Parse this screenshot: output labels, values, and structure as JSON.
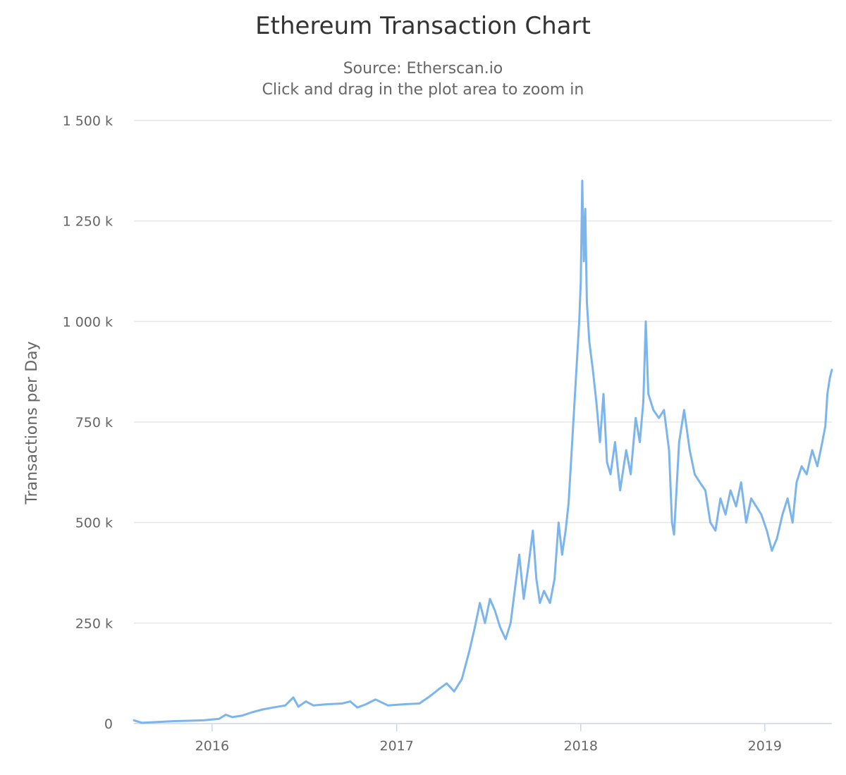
{
  "chart_data": {
    "type": "line",
    "title": "Ethereum Transaction Chart",
    "subtitle_lines": [
      "Source: Etherscan.io",
      "Click and drag in the plot area to zoom in"
    ],
    "ylabel": "Transactions per Day",
    "xlabel": "",
    "ylim": [
      0,
      1500000
    ],
    "xlim": [
      "2015-07-30",
      "2019-05-14"
    ],
    "y_ticks": [
      {
        "value": 0,
        "label": "0"
      },
      {
        "value": 250000,
        "label": "250 k"
      },
      {
        "value": 500000,
        "label": "500 k"
      },
      {
        "value": 750000,
        "label": "750 k"
      },
      {
        "value": 1000000,
        "label": "1 000 k"
      },
      {
        "value": 1250000,
        "label": "1 250 k"
      },
      {
        "value": 1500000,
        "label": "1 500 k"
      }
    ],
    "x_ticks": [
      {
        "value": "2016-01-01",
        "label": "2016"
      },
      {
        "value": "2017-01-01",
        "label": "2017"
      },
      {
        "value": "2018-01-01",
        "label": "2018"
      },
      {
        "value": "2019-01-01",
        "label": "2019"
      }
    ],
    "grid": true,
    "legend": "none",
    "series": [
      {
        "color": "#7cb5ec",
        "points": [
          [
            "2015-07-30",
            8000
          ],
          [
            "2015-08-15",
            2000
          ],
          [
            "2015-09-15",
            4000
          ],
          [
            "2015-10-15",
            6000
          ],
          [
            "2015-11-15",
            7000
          ],
          [
            "2015-12-15",
            8000
          ],
          [
            "2016-01-15",
            12000
          ],
          [
            "2016-01-28",
            22000
          ],
          [
            "2016-02-10",
            16000
          ],
          [
            "2016-03-01",
            20000
          ],
          [
            "2016-03-20",
            28000
          ],
          [
            "2016-04-10",
            35000
          ],
          [
            "2016-05-01",
            40000
          ],
          [
            "2016-05-25",
            45000
          ],
          [
            "2016-06-10",
            65000
          ],
          [
            "2016-06-20",
            42000
          ],
          [
            "2016-07-05",
            55000
          ],
          [
            "2016-07-20",
            45000
          ],
          [
            "2016-08-15",
            48000
          ],
          [
            "2016-09-15",
            50000
          ],
          [
            "2016-10-01",
            55000
          ],
          [
            "2016-10-15",
            40000
          ],
          [
            "2016-11-01",
            48000
          ],
          [
            "2016-11-20",
            60000
          ],
          [
            "2016-12-15",
            45000
          ],
          [
            "2017-01-15",
            48000
          ],
          [
            "2017-02-15",
            50000
          ],
          [
            "2017-03-10",
            70000
          ],
          [
            "2017-03-25",
            85000
          ],
          [
            "2017-04-10",
            100000
          ],
          [
            "2017-04-25",
            80000
          ],
          [
            "2017-05-10",
            110000
          ],
          [
            "2017-05-25",
            180000
          ],
          [
            "2017-06-05",
            240000
          ],
          [
            "2017-06-15",
            300000
          ],
          [
            "2017-06-25",
            250000
          ],
          [
            "2017-07-05",
            310000
          ],
          [
            "2017-07-15",
            280000
          ],
          [
            "2017-07-25",
            240000
          ],
          [
            "2017-08-05",
            210000
          ],
          [
            "2017-08-15",
            250000
          ],
          [
            "2017-08-25",
            350000
          ],
          [
            "2017-09-01",
            420000
          ],
          [
            "2017-09-10",
            310000
          ],
          [
            "2017-09-20",
            400000
          ],
          [
            "2017-09-28",
            480000
          ],
          [
            "2017-10-05",
            360000
          ],
          [
            "2017-10-12",
            300000
          ],
          [
            "2017-10-20",
            330000
          ],
          [
            "2017-11-01",
            300000
          ],
          [
            "2017-11-10",
            360000
          ],
          [
            "2017-11-18",
            500000
          ],
          [
            "2017-11-25",
            420000
          ],
          [
            "2017-12-02",
            480000
          ],
          [
            "2017-12-08",
            550000
          ],
          [
            "2017-12-15",
            700000
          ],
          [
            "2017-12-22",
            850000
          ],
          [
            "2017-12-29",
            1000000
          ],
          [
            "2018-01-01",
            1100000
          ],
          [
            "2018-01-04",
            1350000
          ],
          [
            "2018-01-07",
            1150000
          ],
          [
            "2018-01-10",
            1280000
          ],
          [
            "2018-01-13",
            1050000
          ],
          [
            "2018-01-18",
            950000
          ],
          [
            "2018-01-25",
            880000
          ],
          [
            "2018-02-01",
            800000
          ],
          [
            "2018-02-08",
            700000
          ],
          [
            "2018-02-15",
            820000
          ],
          [
            "2018-02-22",
            650000
          ],
          [
            "2018-03-01",
            620000
          ],
          [
            "2018-03-10",
            700000
          ],
          [
            "2018-03-20",
            580000
          ],
          [
            "2018-04-01",
            680000
          ],
          [
            "2018-04-10",
            620000
          ],
          [
            "2018-04-20",
            760000
          ],
          [
            "2018-04-28",
            700000
          ],
          [
            "2018-05-05",
            800000
          ],
          [
            "2018-05-10",
            1000000
          ],
          [
            "2018-05-15",
            820000
          ],
          [
            "2018-05-25",
            780000
          ],
          [
            "2018-06-05",
            760000
          ],
          [
            "2018-06-15",
            780000
          ],
          [
            "2018-06-25",
            680000
          ],
          [
            "2018-07-01",
            500000
          ],
          [
            "2018-07-05",
            470000
          ],
          [
            "2018-07-15",
            700000
          ],
          [
            "2018-07-25",
            780000
          ],
          [
            "2018-08-05",
            680000
          ],
          [
            "2018-08-15",
            620000
          ],
          [
            "2018-08-25",
            600000
          ],
          [
            "2018-09-05",
            580000
          ],
          [
            "2018-09-15",
            500000
          ],
          [
            "2018-09-25",
            480000
          ],
          [
            "2018-10-05",
            560000
          ],
          [
            "2018-10-15",
            520000
          ],
          [
            "2018-10-25",
            580000
          ],
          [
            "2018-11-05",
            540000
          ],
          [
            "2018-11-15",
            600000
          ],
          [
            "2018-11-25",
            500000
          ],
          [
            "2018-12-05",
            560000
          ],
          [
            "2018-12-15",
            540000
          ],
          [
            "2018-12-25",
            520000
          ],
          [
            "2019-01-05",
            480000
          ],
          [
            "2019-01-15",
            430000
          ],
          [
            "2019-01-25",
            460000
          ],
          [
            "2019-02-05",
            520000
          ],
          [
            "2019-02-15",
            560000
          ],
          [
            "2019-02-25",
            500000
          ],
          [
            "2019-03-05",
            600000
          ],
          [
            "2019-03-15",
            640000
          ],
          [
            "2019-03-25",
            620000
          ],
          [
            "2019-04-05",
            680000
          ],
          [
            "2019-04-15",
            640000
          ],
          [
            "2019-04-25",
            700000
          ],
          [
            "2019-05-01",
            740000
          ],
          [
            "2019-05-05",
            820000
          ],
          [
            "2019-05-10",
            860000
          ],
          [
            "2019-05-14",
            880000
          ]
        ]
      }
    ]
  }
}
